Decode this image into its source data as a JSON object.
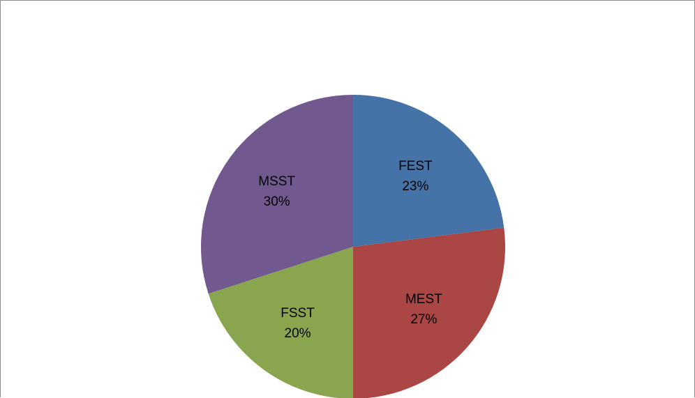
{
  "chart_data": {
    "type": "pie",
    "title": "",
    "start_angle_deg": 0,
    "direction": "clockwise",
    "slices": [
      {
        "label": "FEST",
        "value": 23,
        "percent_label": "23%",
        "color": "#4572A7"
      },
      {
        "label": "MEST",
        "value": 27,
        "percent_label": "27%",
        "color": "#AA4643"
      },
      {
        "label": "FSST",
        "value": 20,
        "percent_label": "20%",
        "color": "#89A54E"
      },
      {
        "label": "MSST",
        "value": 30,
        "percent_label": "30%",
        "color": "#71588F"
      }
    ]
  }
}
